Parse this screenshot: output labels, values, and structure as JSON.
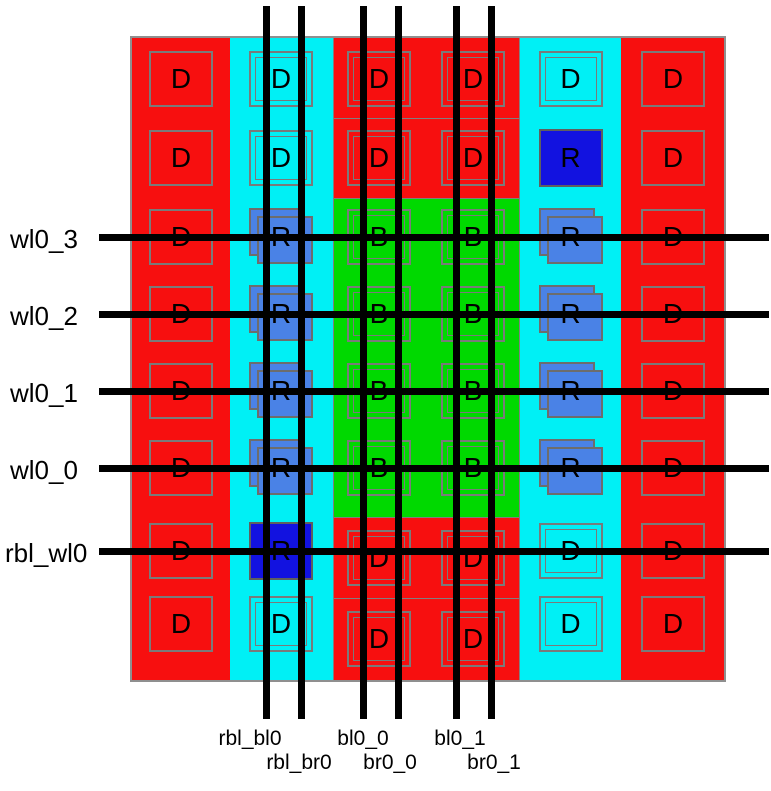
{
  "colors": {
    "red": "#f70f0f",
    "cyan": "#00f0f5",
    "green": "#00d900",
    "blue_light": "#4a82e6",
    "blue_dark": "#1212e0",
    "outline_gray": "#7a7a7a",
    "net_black": "#000000"
  },
  "array": {
    "description": "bitcell array layout",
    "cell_types": {
      "D": "dummy cell",
      "R": "replica cell",
      "B": "bitcell"
    },
    "cells": [
      [
        {
          "letter": "D",
          "variant": "d1"
        },
        {
          "letter": "D",
          "variant": "d2"
        },
        {
          "letter": "D",
          "variant": "d2"
        },
        {
          "letter": "D",
          "variant": "d2"
        },
        {
          "letter": "D",
          "variant": "d2"
        },
        {
          "letter": "D",
          "variant": "d1"
        }
      ],
      [
        {
          "letter": "D",
          "variant": "d1"
        },
        {
          "letter": "D",
          "variant": "d2"
        },
        {
          "letter": "D",
          "variant": "d2"
        },
        {
          "letter": "D",
          "variant": "d2"
        },
        {
          "letter": "R",
          "variant": "rd"
        },
        {
          "letter": "D",
          "variant": "d1"
        }
      ],
      [
        {
          "letter": "D",
          "variant": "d1"
        },
        {
          "letter": "R",
          "variant": "rl"
        },
        {
          "letter": "B",
          "variant": "d2"
        },
        {
          "letter": "B",
          "variant": "d2"
        },
        {
          "letter": "R",
          "variant": "rl"
        },
        {
          "letter": "D",
          "variant": "d1"
        }
      ],
      [
        {
          "letter": "D",
          "variant": "d1"
        },
        {
          "letter": "R",
          "variant": "rl"
        },
        {
          "letter": "B",
          "variant": "d2"
        },
        {
          "letter": "B",
          "variant": "d2"
        },
        {
          "letter": "R",
          "variant": "rl"
        },
        {
          "letter": "D",
          "variant": "d1"
        }
      ],
      [
        {
          "letter": "D",
          "variant": "d1"
        },
        {
          "letter": "R",
          "variant": "rl"
        },
        {
          "letter": "B",
          "variant": "d2"
        },
        {
          "letter": "B",
          "variant": "d2"
        },
        {
          "letter": "R",
          "variant": "rl"
        },
        {
          "letter": "D",
          "variant": "d1"
        }
      ],
      [
        {
          "letter": "D",
          "variant": "d1"
        },
        {
          "letter": "R",
          "variant": "rl"
        },
        {
          "letter": "B",
          "variant": "d2"
        },
        {
          "letter": "B",
          "variant": "d2"
        },
        {
          "letter": "R",
          "variant": "rl"
        },
        {
          "letter": "D",
          "variant": "d1"
        }
      ],
      [
        {
          "letter": "D",
          "variant": "d1"
        },
        {
          "letter": "R",
          "variant": "rd"
        },
        {
          "letter": "D",
          "variant": "d2"
        },
        {
          "letter": "D",
          "variant": "d2"
        },
        {
          "letter": "D",
          "variant": "d2"
        },
        {
          "letter": "D",
          "variant": "d1"
        }
      ],
      [
        {
          "letter": "D",
          "variant": "d1"
        },
        {
          "letter": "D",
          "variant": "d2"
        },
        {
          "letter": "D",
          "variant": "d2"
        },
        {
          "letter": "D",
          "variant": "d2"
        },
        {
          "letter": "D",
          "variant": "d2"
        },
        {
          "letter": "D",
          "variant": "d1"
        }
      ]
    ]
  },
  "wordlines": [
    {
      "label": "wl0_3"
    },
    {
      "label": "wl0_2"
    },
    {
      "label": "wl0_1"
    },
    {
      "label": "wl0_0"
    },
    {
      "label": "rbl_wl0"
    }
  ],
  "bitlines": [
    {
      "label": "rbl_bl0"
    },
    {
      "label": "rbl_br0"
    },
    {
      "label": "bl0_0"
    },
    {
      "label": "br0_0"
    },
    {
      "label": "bl0_1"
    },
    {
      "label": "br0_1"
    }
  ]
}
